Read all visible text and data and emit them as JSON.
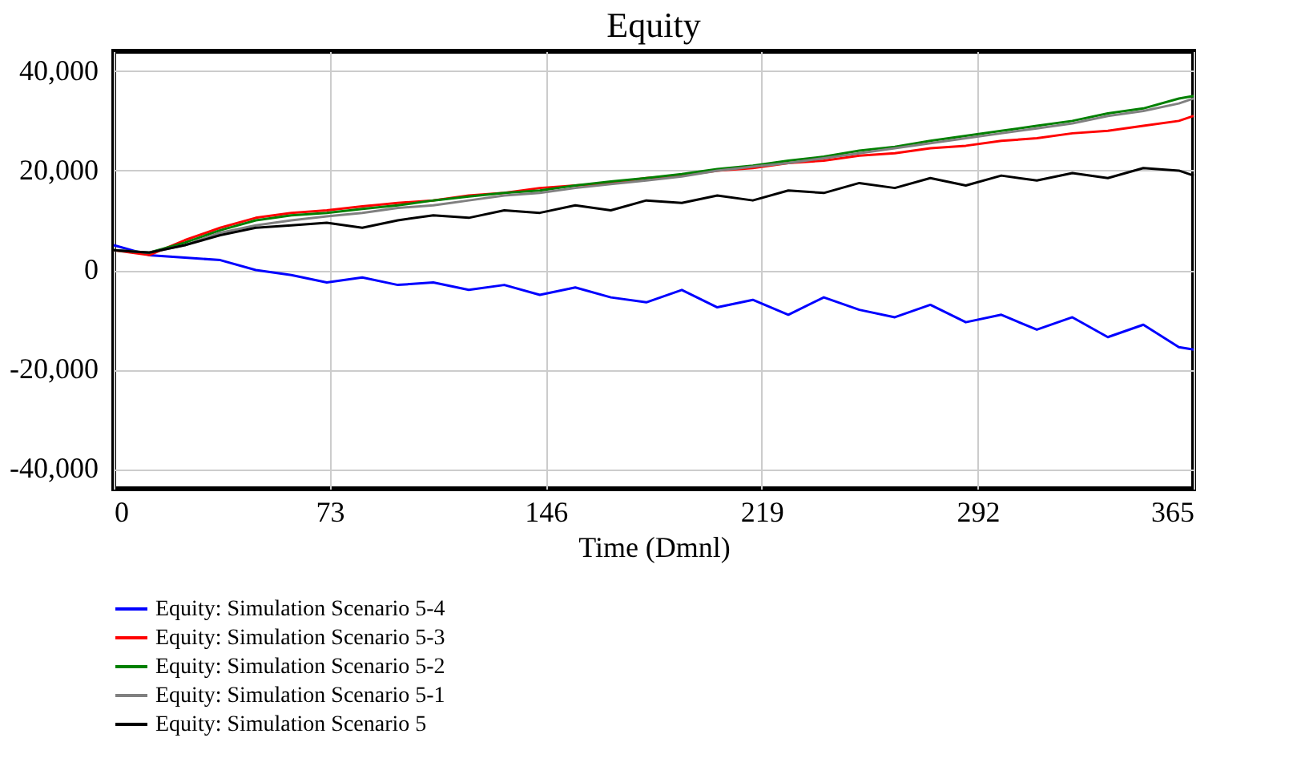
{
  "chart_data": {
    "type": "line",
    "title": "Equity",
    "xlabel": "Time (Dmnl)",
    "x": [
      0,
      12,
      24,
      36,
      48,
      60,
      72,
      84,
      96,
      108,
      120,
      132,
      144,
      156,
      168,
      180,
      192,
      204,
      216,
      228,
      240,
      252,
      264,
      276,
      288,
      300,
      312,
      324,
      336,
      348,
      360,
      365
    ],
    "xlim": [
      0,
      365
    ],
    "xticks": [
      0,
      73,
      146,
      219,
      292,
      365
    ],
    "ylim": [
      -44000,
      44000
    ],
    "yticks": [
      {
        "value": -40000,
        "label": "-40,000"
      },
      {
        "value": -20000,
        "label": "-20,000"
      },
      0,
      {
        "value": 20000,
        "label": "20,000"
      },
      {
        "value": 40000,
        "label": "40,000"
      }
    ],
    "grid": true,
    "legend": "bottom",
    "line_style": "solid",
    "marker": "none",
    "series": [
      {
        "name": "Equity: Simulation Scenario 5-4",
        "color": "#0000ff",
        "values": [
          5000,
          3000,
          2500,
          2000,
          0,
          -1000,
          -2500,
          -1500,
          -3000,
          -2500,
          -4000,
          -3000,
          -5000,
          -3500,
          -5500,
          -6500,
          -4000,
          -7500,
          -6000,
          -9000,
          -5500,
          -8000,
          -9500,
          -7000,
          -10500,
          -9000,
          -12000,
          -9500,
          -13500,
          -11000,
          -15500,
          -16000
        ]
      },
      {
        "name": "Equity: Simulation Scenario 5-3",
        "color": "#ff0000",
        "values": [
          4000,
          3000,
          6000,
          8500,
          10500,
          11500,
          12000,
          12800,
          13500,
          14000,
          15000,
          15500,
          16500,
          17000,
          17500,
          18500,
          19000,
          20000,
          20500,
          21500,
          22000,
          23000,
          23500,
          24500,
          25000,
          26000,
          26500,
          27500,
          28000,
          29000,
          30000,
          31000
        ]
      },
      {
        "name": "Equity: Simulation Scenario 5-2",
        "color": "#008000",
        "values": [
          4000,
          3500,
          5500,
          8000,
          10000,
          11000,
          11500,
          12300,
          13000,
          14000,
          14800,
          15500,
          16000,
          17000,
          17800,
          18500,
          19300,
          20300,
          21000,
          22000,
          22800,
          24000,
          24800,
          26000,
          27000,
          28000,
          29000,
          30000,
          31500,
          32500,
          34500,
          35000
        ]
      },
      {
        "name": "Equity: Simulation Scenario 5-1",
        "color": "#808080",
        "values": [
          4000,
          3500,
          5000,
          7500,
          9000,
          10000,
          10800,
          11500,
          12500,
          13000,
          14000,
          15000,
          15500,
          16500,
          17300,
          18000,
          18800,
          20000,
          20800,
          21500,
          22500,
          23500,
          24500,
          25500,
          26500,
          27500,
          28500,
          29500,
          31000,
          32000,
          33500,
          34500
        ]
      },
      {
        "name": "Equity: Simulation Scenario 5",
        "color": "#000000",
        "values": [
          4000,
          3500,
          5000,
          7000,
          8500,
          9000,
          9500,
          8500,
          10000,
          11000,
          10500,
          12000,
          11500,
          13000,
          12000,
          14000,
          13500,
          15000,
          14000,
          16000,
          15500,
          17500,
          16500,
          18500,
          17000,
          19000,
          18000,
          19500,
          18500,
          20500,
          20000,
          19000
        ]
      }
    ]
  }
}
